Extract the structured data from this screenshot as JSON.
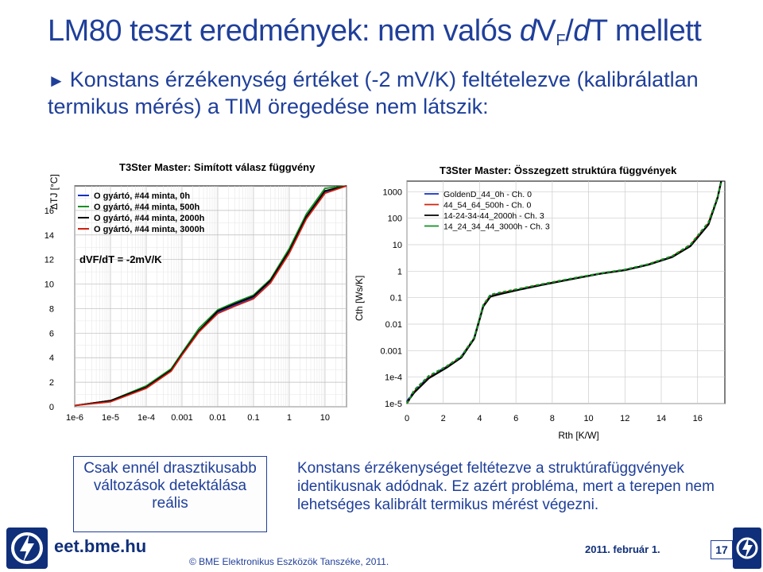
{
  "slide": {
    "title_prefix": "LM80 teszt eredmények: nem valós ",
    "title_dv": "dV",
    "title_sub": "F",
    "title_slash": "/",
    "title_d": "d",
    "title_suffix": "T mellett",
    "bullet": "Konstans érzékenység értéket (-2 mV/K) feltételezve (kalibrálatlan termikus mérés) a TIM öregedése nem látszik:",
    "left_box": "Csak ennél drasztikusabb változások detektálása reális",
    "right_text": "Konstans érzékenységet feltétezve a struktúrafüggvények identikusnak adódnak. Ez azért probléma, mert a terepen nem lehetséges kalibrált termikus mérést végezni.",
    "colors": {
      "title": "#1f3f9a",
      "footer": "#0f2f7a"
    }
  },
  "footer": {
    "site": "eet.bme.hu",
    "copyright": "© BME Elektronikus Eszközök Tanszéke, 2011.",
    "date": "2011. február 1.",
    "page": "17",
    "logo_icon": "lightning-logo-icon"
  },
  "chart_data": [
    {
      "type": "line",
      "title": "T3Ster Master: Simított válasz függvény",
      "ylabel": "ΔTJ [°C]",
      "xlabel": "",
      "annotation": "dVF/dT = -2mV/K",
      "x_scale": "log",
      "x_ticks": [
        "1e-6",
        "1e-5",
        "1e-4",
        "0.001",
        "0.01",
        "0.1",
        "1",
        "10"
      ],
      "y_ticks": [
        "0",
        "2",
        "4",
        "6",
        "8",
        "10",
        "12",
        "14",
        "16"
      ],
      "ylim": [
        0,
        18
      ],
      "grid": true,
      "legend_position": "top-left",
      "series": [
        {
          "name": "O gyártó, #44 minta, 0h",
          "color": "#1030c0",
          "x": [
            1e-06,
            1e-05,
            0.0001,
            0.0005,
            0.001,
            0.003,
            0.01,
            0.03,
            0.1,
            0.3,
            1,
            3,
            10,
            40
          ],
          "y": [
            0.1,
            0.5,
            1.6,
            3.0,
            4.3,
            6.2,
            7.7,
            8.3,
            8.9,
            10.2,
            12.6,
            15.4,
            17.5,
            18.0
          ]
        },
        {
          "name": "O gyártó, #44 minta, 500h",
          "color": "#109020",
          "x": [
            1e-06,
            1e-05,
            0.0001,
            0.0005,
            0.001,
            0.003,
            0.01,
            0.03,
            0.1,
            0.3,
            1,
            3,
            10,
            40
          ],
          "y": [
            0.1,
            0.5,
            1.7,
            3.1,
            4.4,
            6.4,
            7.9,
            8.5,
            9.1,
            10.4,
            12.9,
            15.7,
            17.8,
            18.0
          ]
        },
        {
          "name": "O gyártó, #44 minta, 2000h",
          "color": "#000000",
          "x": [
            1e-06,
            1e-05,
            0.0001,
            0.0005,
            0.001,
            0.003,
            0.01,
            0.03,
            0.1,
            0.3,
            1,
            3,
            10,
            40
          ],
          "y": [
            0.1,
            0.5,
            1.6,
            3.0,
            4.3,
            6.2,
            7.8,
            8.4,
            9.0,
            10.3,
            12.7,
            15.5,
            17.6,
            18.0
          ]
        },
        {
          "name": "O gyártó, #44 minta, 3000h",
          "color": "#d02010",
          "x": [
            1e-06,
            1e-05,
            0.0001,
            0.0005,
            0.001,
            0.003,
            0.01,
            0.03,
            0.1,
            0.3,
            1,
            3,
            10,
            40
          ],
          "y": [
            0.1,
            0.4,
            1.5,
            2.9,
            4.2,
            6.1,
            7.6,
            8.2,
            8.8,
            10.1,
            12.5,
            15.3,
            17.4,
            18.0
          ]
        }
      ]
    },
    {
      "type": "line",
      "title": "T3Ster Master: Összegzett struktúra függvények",
      "ylabel": "Cth [Ws/K]",
      "xlabel": "Rth [K/W]",
      "y_scale": "log",
      "x_ticks": [
        "0",
        "2",
        "4",
        "6",
        "8",
        "10",
        "12",
        "14",
        "16"
      ],
      "y_ticks": [
        "1e-5",
        "1e-4",
        "0.001",
        "0.01",
        "0.1",
        "1",
        "10",
        "100",
        "1000"
      ],
      "xlim": [
        0,
        17.5
      ],
      "grid": true,
      "legend_position": "top-left",
      "series": [
        {
          "name": "GoldenD_44_0h - Ch. 0",
          "color": "#1030c0",
          "x": [
            0,
            0.4,
            1.2,
            2.2,
            3.0,
            3.7,
            4.2,
            4.6,
            5.2,
            6.2,
            7.4,
            9.0,
            10.6,
            12.0,
            13.3,
            14.6,
            15.6,
            16.6,
            17.1,
            17.3
          ],
          "y": [
            1.2e-05,
            3e-05,
            0.0001,
            0.00025,
            0.0006,
            0.003,
            0.05,
            0.12,
            0.15,
            0.2,
            0.3,
            0.5,
            0.8,
            1.1,
            1.8,
            3.5,
            9,
            60,
            600,
            2500
          ]
        },
        {
          "name": "44_54_64_500h - Ch. 0",
          "color": "#d02010",
          "x": [
            0,
            0.4,
            1.2,
            2.2,
            3.0,
            3.7,
            4.2,
            4.6,
            5.2,
            6.2,
            7.4,
            9.0,
            10.6,
            12.0,
            13.3,
            14.6,
            15.6,
            16.6,
            17.1,
            17.3
          ],
          "y": [
            1e-05,
            2.8e-05,
            9.5e-05,
            0.00024,
            0.00058,
            0.0029,
            0.048,
            0.12,
            0.15,
            0.21,
            0.31,
            0.5,
            0.8,
            1.1,
            1.8,
            3.6,
            9.5,
            65,
            620,
            2500
          ]
        },
        {
          "name": "14-24-34-44_2000h - Ch. 3",
          "color": "#000000",
          "x": [
            0,
            0.4,
            1.2,
            2.2,
            3.0,
            3.7,
            4.2,
            4.6,
            5.2,
            6.2,
            7.4,
            9.0,
            10.6,
            12.0,
            13.3,
            14.6,
            15.6,
            16.6,
            17.1,
            17.3
          ],
          "y": [
            1.1e-05,
            2.6e-05,
            9e-05,
            0.00023,
            0.00055,
            0.0028,
            0.046,
            0.11,
            0.14,
            0.2,
            0.3,
            0.49,
            0.79,
            1.1,
            1.75,
            3.4,
            8.8,
            58,
            590,
            2500
          ]
        },
        {
          "name": "14_24_34_44_3000h - Ch. 3",
          "color": "#109020",
          "x": [
            0,
            0.4,
            1.2,
            2.2,
            3.0,
            3.7,
            4.2,
            4.6,
            5.2,
            6.2,
            7.4,
            9.0,
            10.6,
            12.0,
            13.3,
            14.6,
            15.6,
            16.6,
            17.1,
            17.3
          ],
          "y": [
            1e-05,
            3.2e-05,
            0.00011,
            0.00026,
            0.00062,
            0.0031,
            0.052,
            0.13,
            0.16,
            0.22,
            0.32,
            0.52,
            0.82,
            1.15,
            1.85,
            3.7,
            10,
            70,
            640,
            2500
          ]
        }
      ]
    }
  ]
}
